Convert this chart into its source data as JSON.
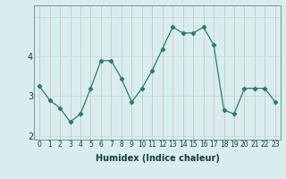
{
  "x": [
    0,
    1,
    2,
    3,
    4,
    5,
    6,
    7,
    8,
    9,
    10,
    11,
    12,
    13,
    14,
    15,
    16,
    17,
    18,
    19,
    20,
    21,
    22,
    23
  ],
  "y": [
    3.25,
    2.9,
    2.7,
    2.35,
    2.55,
    3.2,
    3.9,
    3.9,
    3.45,
    2.85,
    3.2,
    3.65,
    4.2,
    4.75,
    4.6,
    4.6,
    4.75,
    4.3,
    2.65,
    2.55,
    3.2,
    3.2,
    3.2,
    2.85
  ],
  "line_color": "#2d7a6e",
  "marker": "D",
  "marker_size": 2.2,
  "bg_color": "#d8eeee",
  "grid_color_v": "#d8b8b8",
  "grid_color_h": "#c8d8d8",
  "xlabel": "Humidex (Indice chaleur)",
  "ylim": [
    1.9,
    5.3
  ],
  "yticks": [
    2,
    3,
    4
  ],
  "xticks": [
    0,
    1,
    2,
    3,
    4,
    5,
    6,
    7,
    8,
    9,
    10,
    11,
    12,
    13,
    14,
    15,
    16,
    17,
    18,
    19,
    20,
    21,
    22,
    23
  ],
  "xlabel_fontsize": 7,
  "xlabel_fontweight": "bold",
  "tick_fontsize": 5.5,
  "ytick_fontsize": 7
}
